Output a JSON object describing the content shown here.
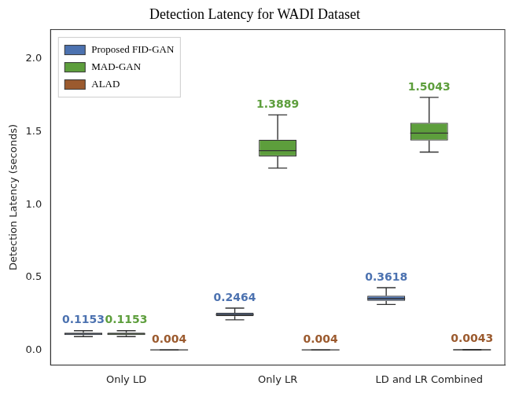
{
  "chart_data": {
    "type": "boxplot",
    "title": "Detection Latency for WADI Dataset",
    "y_label": "Detection Latency (seconds)",
    "categories": [
      "Only LD",
      "Only LR",
      "LD and LR Combined"
    ],
    "series": [
      {
        "name": "Proposed FID-GAN",
        "color": "#4c72b0",
        "values": [
          0.1153,
          0.2464,
          0.3618
        ],
        "boxes": [
          [
            0.095,
            0.105,
            0.113,
            0.122,
            0.135
          ],
          [
            0.21,
            0.235,
            0.245,
            0.258,
            0.29
          ],
          [
            0.315,
            0.34,
            0.355,
            0.375,
            0.43
          ]
        ]
      },
      {
        "name": "MAD-GAN",
        "color": "#5d9e3c",
        "values": [
          0.1153,
          1.3889,
          1.5043
        ],
        "boxes": [
          [
            0.095,
            0.105,
            0.113,
            0.122,
            0.135
          ],
          [
            1.25,
            1.33,
            1.37,
            1.445,
            1.615
          ],
          [
            1.36,
            1.44,
            1.49,
            1.56,
            1.735
          ]
        ]
      },
      {
        "name": "ALAD",
        "color": "#9b5a2e",
        "values": [
          0.004,
          0.004,
          0.0043
        ],
        "boxes": [
          [
            0.003,
            0.0035,
            0.004,
            0.0045,
            0.005
          ],
          [
            0.003,
            0.0035,
            0.004,
            0.0045,
            0.005
          ],
          [
            0.003,
            0.0037,
            0.0043,
            0.005,
            0.006
          ]
        ]
      }
    ],
    "ylim": [
      -0.1,
      2.2
    ],
    "yticks": [
      {
        "value": 0,
        "label": "0.0"
      },
      {
        "value": 0.5,
        "label": "0.5"
      },
      {
        "value": 1,
        "label": "1.0"
      },
      {
        "value": 1.5,
        "label": "1.5"
      },
      {
        "value": 2,
        "label": "2.0"
      }
    ],
    "grid": false,
    "legend": "upper left",
    "data_labels": true
  }
}
